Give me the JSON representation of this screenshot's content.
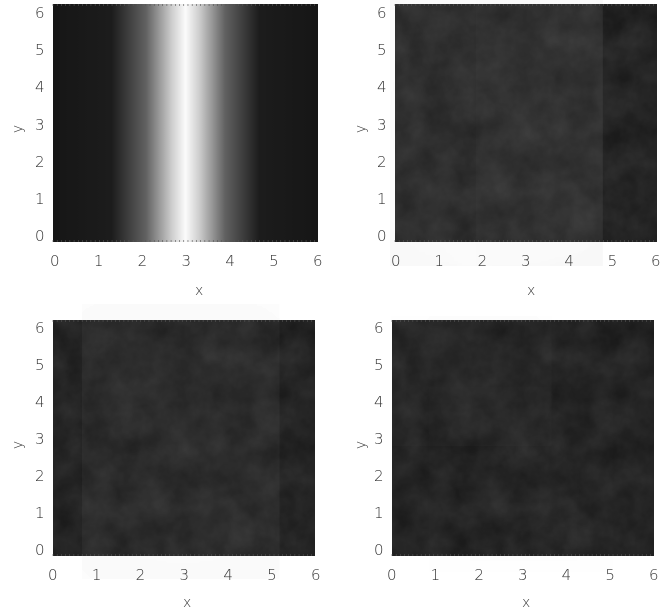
{
  "chart_data": [
    {
      "type": "heatmap",
      "title": "",
      "xlabel": "x",
      "ylabel": "y",
      "xlim": [
        0,
        6.283
      ],
      "ylim": [
        0,
        6.283
      ],
      "xticks": [
        "0",
        "1",
        "2",
        "3",
        "4",
        "5",
        "6"
      ],
      "yticks": [
        "0",
        "1",
        "2",
        "3",
        "4",
        "5",
        "6"
      ],
      "colormap": "grayscale",
      "description_values": {
        "field": "cos-shaped vertical band",
        "band_center_x": 3.14
      }
    },
    {
      "type": "heatmap",
      "title": "",
      "xlabel": "x",
      "ylabel": "y",
      "xlim": [
        0,
        6.283
      ],
      "ylim": [
        0,
        6.283
      ],
      "xticks": [
        "0",
        "1",
        "2",
        "3",
        "4",
        "5",
        "6"
      ],
      "yticks": [
        "0",
        "1",
        "2",
        "3",
        "4",
        "5",
        "6"
      ],
      "colormap": "grayscale"
    },
    {
      "type": "heatmap",
      "title": "",
      "xlabel": "x",
      "ylabel": "y",
      "xlim": [
        0,
        6.283
      ],
      "ylim": [
        0,
        6.283
      ],
      "xticks": [
        "0",
        "1",
        "2",
        "3",
        "4",
        "5",
        "6"
      ],
      "yticks": [
        "0",
        "1",
        "2",
        "3",
        "4",
        "5",
        "6"
      ],
      "colormap": "grayscale"
    },
    {
      "type": "heatmap",
      "title": "",
      "xlabel": "x",
      "ylabel": "y",
      "xlim": [
        0,
        6.283
      ],
      "ylim": [
        0,
        6.283
      ],
      "xticks": [
        "0",
        "1",
        "2",
        "3",
        "4",
        "5",
        "6"
      ],
      "yticks": [
        "0",
        "1",
        "2",
        "3",
        "4",
        "5",
        "6"
      ],
      "colormap": "grayscale"
    }
  ],
  "colors": {
    "background": "#161616",
    "bright": "#f4f4f4"
  }
}
